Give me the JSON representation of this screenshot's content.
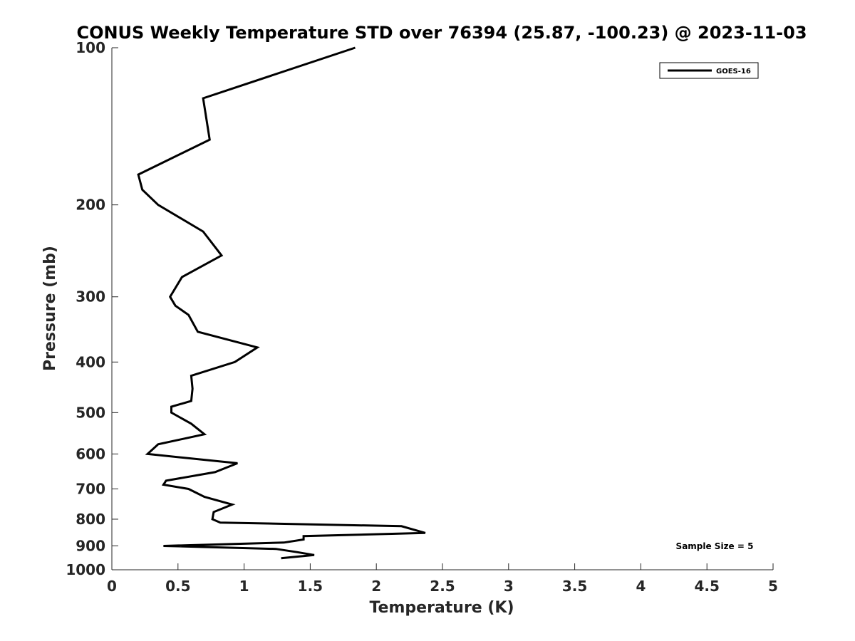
{
  "chart_data": {
    "type": "line",
    "title": "CONUS Weekly Temperature STD over 76394 (25.87, -100.23) @ 2023-11-03",
    "xlabel": "Temperature (K)",
    "ylabel": "Pressure (mb)",
    "xlim": [
      0,
      5
    ],
    "ylim": [
      100,
      1000
    ],
    "y_scale": "log",
    "y_reversed": true,
    "x_ticks": [
      "0",
      "0.5",
      "1",
      "1.5",
      "2",
      "2.5",
      "3",
      "3.5",
      "4",
      "4.5",
      "5"
    ],
    "y_ticks": [
      "100",
      "200",
      "300",
      "400",
      "500",
      "600",
      "700",
      "800",
      "900",
      "1000"
    ],
    "grid": false,
    "legend_position": "top-right",
    "annotation": "Sample Size = 5",
    "series": [
      {
        "name": "GOES-16",
        "color": "#000000",
        "points": [
          [
            1.84,
            100
          ],
          [
            0.69,
            125
          ],
          [
            0.74,
            150
          ],
          [
            0.2,
            175
          ],
          [
            0.23,
            187
          ],
          [
            0.35,
            200
          ],
          [
            0.69,
            225
          ],
          [
            0.83,
            250
          ],
          [
            0.53,
            275
          ],
          [
            0.44,
            300
          ],
          [
            0.48,
            312
          ],
          [
            0.58,
            325
          ],
          [
            0.65,
            350
          ],
          [
            1.1,
            375
          ],
          [
            0.93,
            400
          ],
          [
            0.6,
            425
          ],
          [
            0.61,
            450
          ],
          [
            0.6,
            475
          ],
          [
            0.45,
            487
          ],
          [
            0.45,
            500
          ],
          [
            0.6,
            525
          ],
          [
            0.7,
            550
          ],
          [
            0.35,
            575
          ],
          [
            0.27,
            600
          ],
          [
            0.95,
            625
          ],
          [
            0.78,
            650
          ],
          [
            0.41,
            675
          ],
          [
            0.39,
            687
          ],
          [
            0.58,
            700
          ],
          [
            0.7,
            725
          ],
          [
            0.91,
            750
          ],
          [
            0.77,
            775
          ],
          [
            0.76,
            800
          ],
          [
            0.82,
            812
          ],
          [
            2.19,
            825
          ],
          [
            2.37,
            850
          ],
          [
            1.45,
            862
          ],
          [
            1.45,
            875
          ],
          [
            1.3,
            887
          ],
          [
            0.39,
            900
          ],
          [
            1.24,
            912
          ],
          [
            1.4,
            925
          ],
          [
            1.53,
            937
          ],
          [
            1.28,
            950
          ]
        ]
      }
    ]
  }
}
